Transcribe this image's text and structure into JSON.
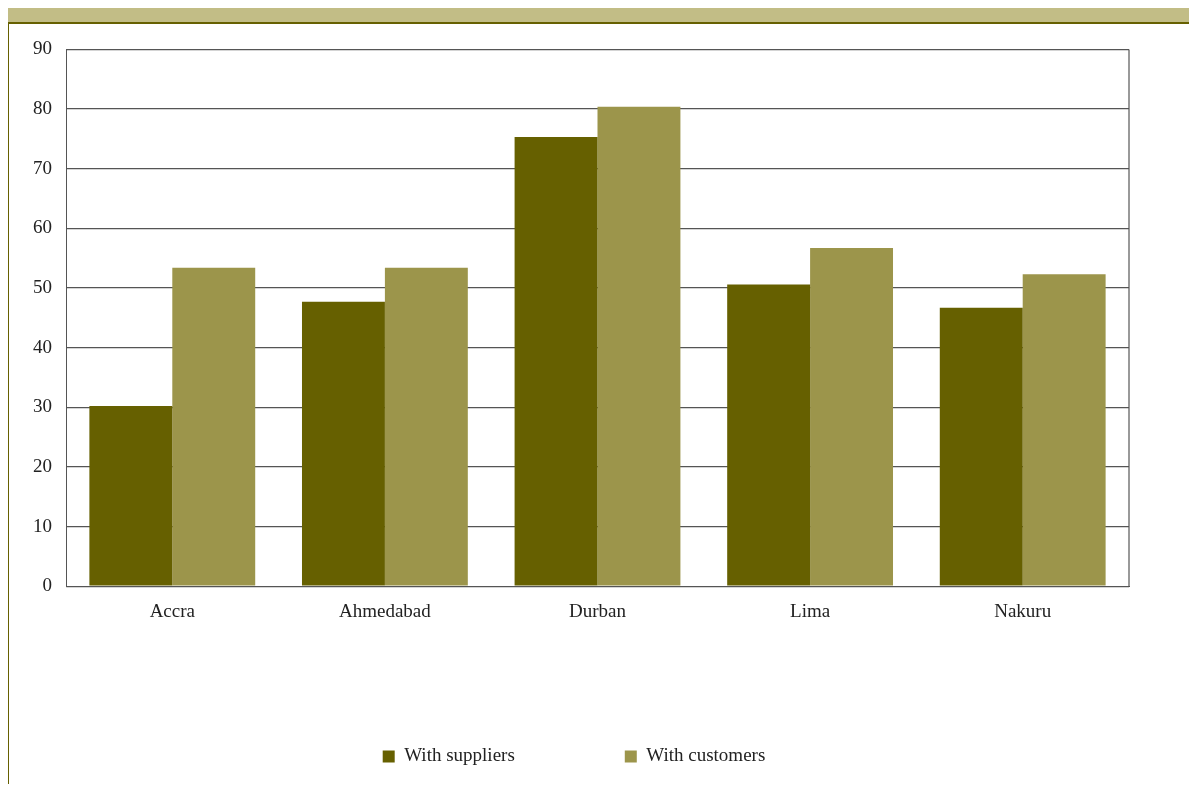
{
  "chart_data": {
    "type": "bar",
    "categories": [
      "Accra",
      "Ahmedabad",
      "Durban",
      "Lima",
      "Nakuru"
    ],
    "series": [
      {
        "name": "With suppliers",
        "color": "#666000",
        "values": [
          30.2,
          47.7,
          75.3,
          50.6,
          46.7
        ]
      },
      {
        "name": "With customers",
        "color": "#9c954b",
        "values": [
          53.4,
          53.4,
          80.4,
          56.7,
          52.3
        ]
      }
    ],
    "ylim": [
      0,
      90
    ],
    "yticks": [
      0,
      10,
      20,
      30,
      40,
      50,
      60,
      70,
      80,
      90
    ],
    "grid": "y",
    "legend": "bottom"
  }
}
